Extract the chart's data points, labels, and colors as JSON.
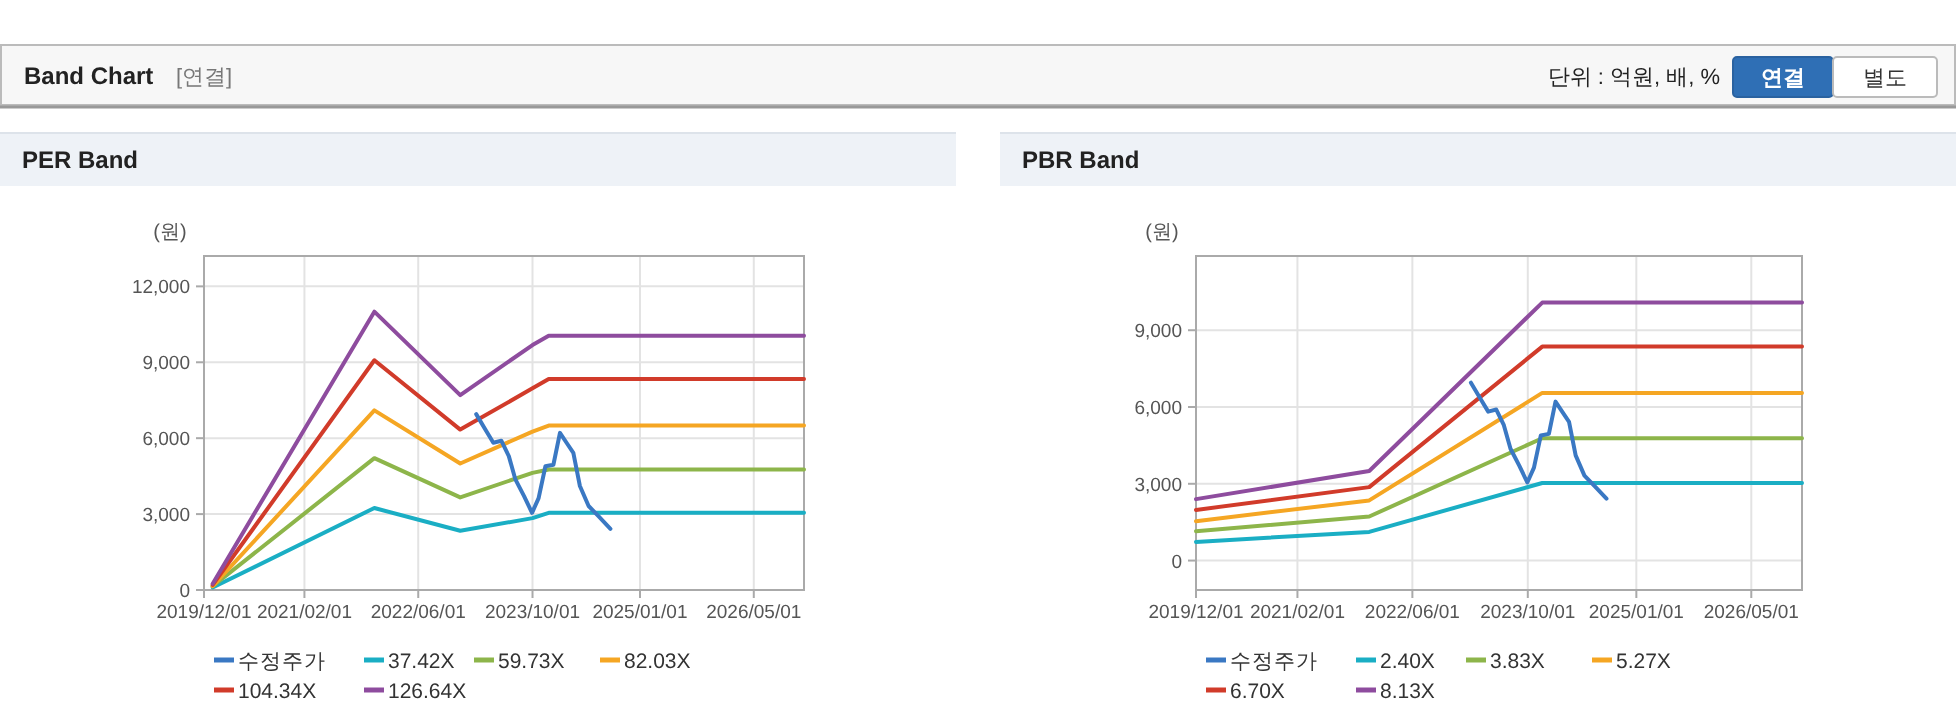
{
  "chart_data": [
    {
      "type": "other",
      "title": "Band Chart",
      "annotations": [
        "[연결]",
        "단위 : 억원, 배, %",
        "연결",
        "별도"
      ]
    },
    {
      "type": "line",
      "title": "PER Band",
      "ylabel": "(원)",
      "xlim": [
        "2019-12-01",
        "2026-12-01"
      ],
      "ylim": [
        0,
        13200
      ],
      "grid": true,
      "legend": "bottom",
      "marker": "none",
      "line_style": "solid",
      "xticks": [
        {
          "value": "2019-12-01",
          "label": "2019/12/01"
        },
        {
          "value": "2021-02-01",
          "label": "2021/02/01"
        },
        {
          "value": "2022-06-01",
          "label": "2022/06/01"
        },
        {
          "value": "2023-10-01",
          "label": "2023/10/01"
        },
        {
          "value": "2025-01-01",
          "label": "2025/01/01"
        },
        {
          "value": "2026-05-01",
          "label": "2026/05/01"
        }
      ],
      "yticks": [
        0,
        {
          "value": 3000,
          "label": "3,000"
        },
        {
          "value": 6000,
          "label": "6,000"
        },
        {
          "value": 9000,
          "label": "9,000"
        },
        {
          "value": 12000,
          "label": "12,000"
        }
      ],
      "series": [
        {
          "name": "수정주가",
          "color": "#3a78c3",
          "x": [
            "2023-02-03",
            "2023-03-14",
            "2023-04-17",
            "2023-05-21",
            "2023-06-22",
            "2023-07-20",
            "2023-08-26",
            "2023-09-29",
            "2023-10-27",
            "2023-11-25",
            "2023-12-29",
            "2024-01-26",
            "2024-02-23",
            "2024-03-23",
            "2024-04-20",
            "2024-05-27",
            "2024-07-08",
            "2024-08-28"
          ],
          "values": [
            6950,
            6340,
            5820,
            5900,
            5290,
            4370,
            3710,
            3050,
            3630,
            4890,
            4950,
            6210,
            5820,
            5420,
            4110,
            3320,
            2920,
            2420
          ]
        },
        {
          "name": "37.42X",
          "color": "#1aaec4",
          "x": [
            "2020-01-07",
            "2021-11-26",
            "2022-11-27",
            "2023-10-01",
            "2023-12-09",
            "2026-12-01"
          ],
          "values": [
            100,
            3240,
            2340,
            2840,
            3050,
            3050
          ]
        },
        {
          "name": "59.73X",
          "color": "#8db54a",
          "x": [
            "2020-01-07",
            "2021-11-26",
            "2022-11-27",
            "2023-10-01",
            "2023-12-09",
            "2026-12-01"
          ],
          "values": [
            150,
            5210,
            3660,
            4630,
            4760,
            4760
          ]
        },
        {
          "name": "82.03X",
          "color": "#f5a623",
          "x": [
            "2020-01-07",
            "2021-11-26",
            "2022-11-27",
            "2023-10-01",
            "2023-12-09",
            "2026-12-01"
          ],
          "values": [
            150,
            7100,
            5000,
            6260,
            6500,
            6500
          ]
        },
        {
          "name": "104.34X",
          "color": "#d13b2a",
          "x": [
            "2020-01-07",
            "2021-11-26",
            "2022-11-27",
            "2023-10-01",
            "2023-12-09",
            "2026-12-01"
          ],
          "values": [
            200,
            9080,
            6340,
            7970,
            8340,
            8340
          ]
        },
        {
          "name": "126.64X",
          "color": "#8e4c9e",
          "x": [
            "2020-01-07",
            "2021-11-26",
            "2022-11-27",
            "2023-10-01",
            "2023-12-09",
            "2026-12-01"
          ],
          "values": [
            250,
            11000,
            7700,
            9680,
            10050,
            10050
          ]
        }
      ]
    },
    {
      "type": "line",
      "title": "PBR Band",
      "ylabel": "(원)",
      "xlim": [
        "2019-12-01",
        "2026-12-01"
      ],
      "ylim": [
        -1150,
        11900
      ],
      "grid": true,
      "legend": "bottom",
      "marker": "none",
      "line_style": "solid",
      "xticks": [
        {
          "value": "2019-12-01",
          "label": "2019/12/01"
        },
        {
          "value": "2021-02-01",
          "label": "2021/02/01"
        },
        {
          "value": "2022-06-01",
          "label": "2022/06/01"
        },
        {
          "value": "2023-10-01",
          "label": "2023/10/01"
        },
        {
          "value": "2025-01-01",
          "label": "2025/01/01"
        },
        {
          "value": "2026-05-01",
          "label": "2026/05/01"
        }
      ],
      "yticks": [
        0,
        {
          "value": 3000,
          "label": "3,000"
        },
        {
          "value": 6000,
          "label": "6,000"
        },
        {
          "value": 9000,
          "label": "9,000"
        }
      ],
      "series": [
        {
          "name": "수정주가",
          "color": "#3a78c3",
          "x": [
            "2023-02-03",
            "2023-03-14",
            "2023-04-17",
            "2023-05-21",
            "2023-06-22",
            "2023-07-20",
            "2023-08-26",
            "2023-09-29",
            "2023-10-27",
            "2023-11-25",
            "2023-12-29",
            "2024-01-26",
            "2024-02-23",
            "2024-03-23",
            "2024-04-20",
            "2024-05-27",
            "2024-07-08",
            "2024-08-28"
          ],
          "values": [
            6950,
            6340,
            5820,
            5900,
            5290,
            4370,
            3710,
            3050,
            3630,
            4890,
            4950,
            6210,
            5820,
            5420,
            4110,
            3320,
            2920,
            2420
          ]
        },
        {
          "name": "2.40X",
          "color": "#1aaec4",
          "x": [
            "2019-12-01",
            "2021-12-01",
            "2023-12-01",
            "2026-12-01"
          ],
          "values": [
            730,
            1120,
            3030,
            3030
          ]
        },
        {
          "name": "3.83X",
          "color": "#8db54a",
          "x": [
            "2019-12-01",
            "2021-12-01",
            "2023-12-01",
            "2026-12-01"
          ],
          "values": [
            1150,
            1720,
            4780,
            4780
          ]
        },
        {
          "name": "5.27X",
          "color": "#f5a623",
          "x": [
            "2019-12-01",
            "2021-12-01",
            "2023-12-01",
            "2026-12-01"
          ],
          "values": [
            1540,
            2350,
            6550,
            6550
          ]
        },
        {
          "name": "6.70X",
          "color": "#d13b2a",
          "x": [
            "2019-12-01",
            "2021-12-01",
            "2023-12-01",
            "2026-12-01"
          ],
          "values": [
            1980,
            2870,
            8360,
            8360
          ]
        },
        {
          "name": "8.13X",
          "color": "#8e4c9e",
          "x": [
            "2019-12-01",
            "2021-12-01",
            "2023-12-01",
            "2026-12-01"
          ],
          "values": [
            2400,
            3500,
            10080,
            10080
          ]
        }
      ]
    }
  ]
}
